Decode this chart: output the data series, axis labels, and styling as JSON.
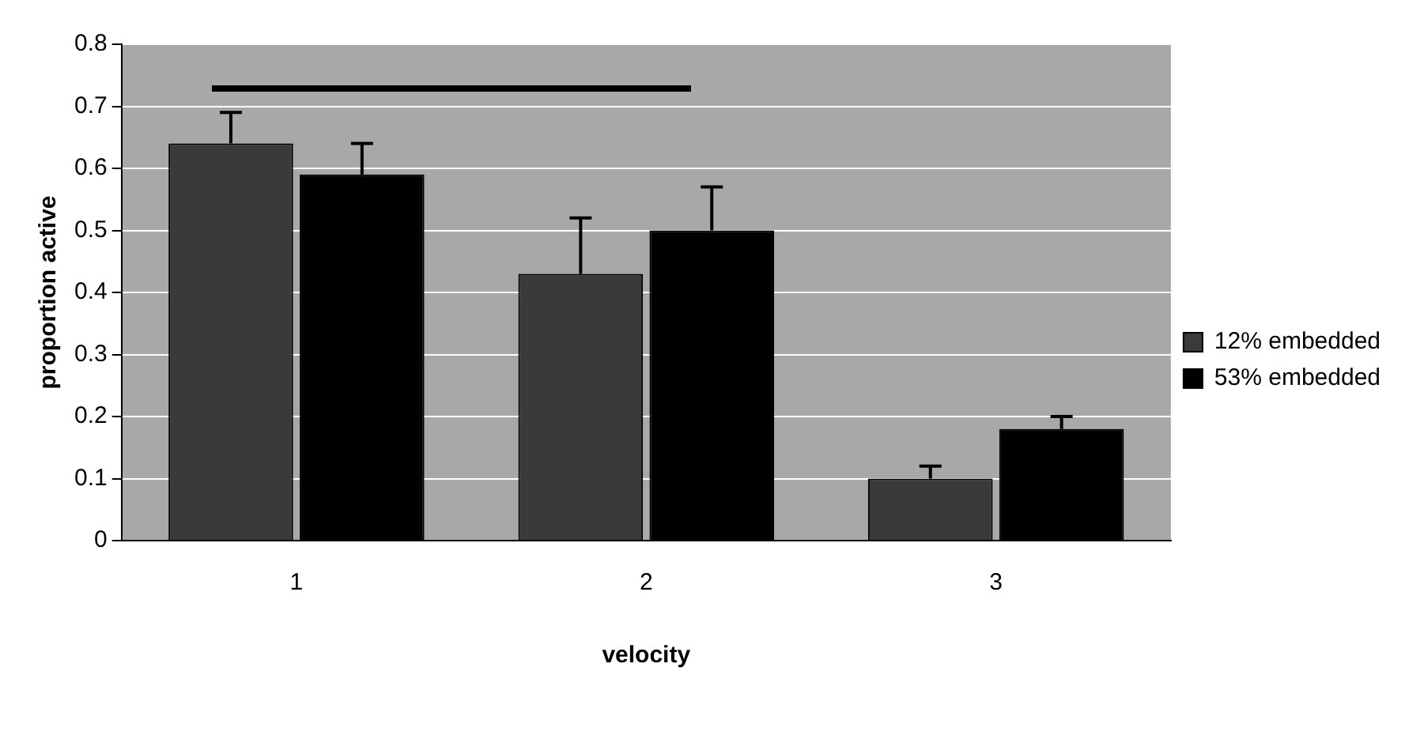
{
  "chart_data": {
    "type": "bar",
    "xlabel": "velocity",
    "ylabel": "proportion active",
    "categories": [
      "1",
      "2",
      "3"
    ],
    "series": [
      {
        "name": "12% embedded",
        "color": "#3a3a3a",
        "values": [
          0.64,
          0.43,
          0.1
        ],
        "errors": [
          [
            0.64,
            0.69
          ],
          [
            0.43,
            0.52
          ],
          [
            0.1,
            0.12
          ]
        ]
      },
      {
        "name": "53% embedded",
        "color": "#000000",
        "values": [
          0.59,
          0.5,
          0.18
        ],
        "errors": [
          [
            0.59,
            0.64
          ],
          [
            0.5,
            0.57
          ],
          [
            0.18,
            0.2
          ]
        ]
      }
    ],
    "ylim": [
      0,
      0.8
    ],
    "yticks": [
      0,
      0.1,
      0.2,
      0.3,
      0.4,
      0.5,
      0.6,
      0.7,
      0.8
    ],
    "grid": "y",
    "legend": "right"
  }
}
